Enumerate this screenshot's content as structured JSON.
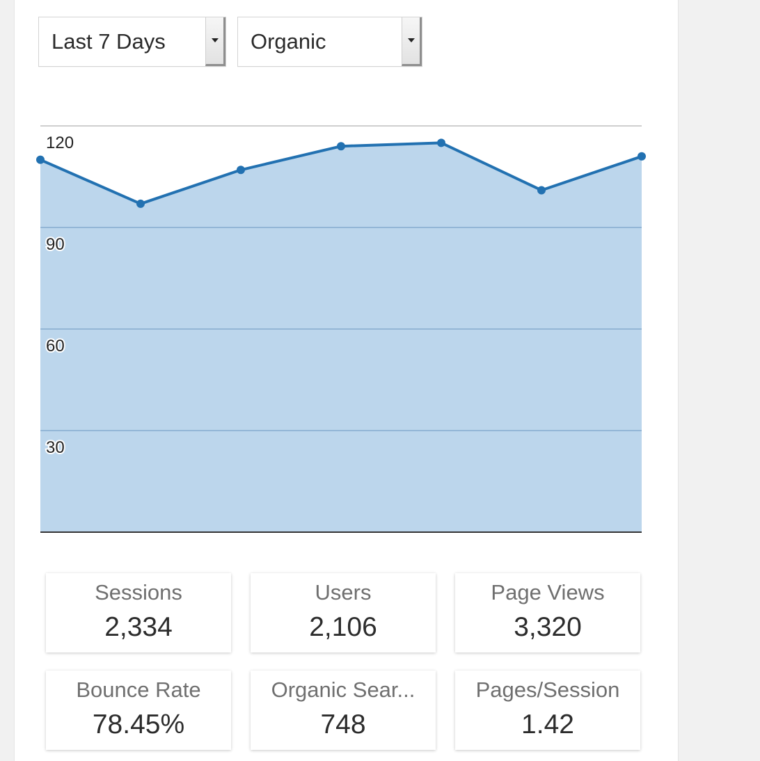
{
  "filters": {
    "period": {
      "selected": "Last 7 Days"
    },
    "channel": {
      "selected": "Organic"
    }
  },
  "chart_data": {
    "type": "area",
    "x": [
      1,
      2,
      3,
      4,
      5,
      6,
      7
    ],
    "values": [
      110,
      97,
      107,
      114,
      115,
      101,
      111
    ],
    "ylim": [
      0,
      120
    ],
    "yticks": [
      "30",
      "60",
      "90",
      "120"
    ],
    "grid": true,
    "title": "",
    "xlabel": "",
    "ylabel": "",
    "colors": {
      "line": "#2271b1",
      "fill": "#bcd6ec",
      "grid": "#93b6d6"
    }
  },
  "metrics": [
    {
      "label": "Sessions",
      "value": "2,334"
    },
    {
      "label": "Users",
      "value": "2,106"
    },
    {
      "label": "Page Views",
      "value": "3,320"
    },
    {
      "label": "Bounce Rate",
      "value": "78.45%"
    },
    {
      "label": "Organic Sear...",
      "value": "748"
    },
    {
      "label": "Pages/Session",
      "value": "1.42"
    }
  ]
}
